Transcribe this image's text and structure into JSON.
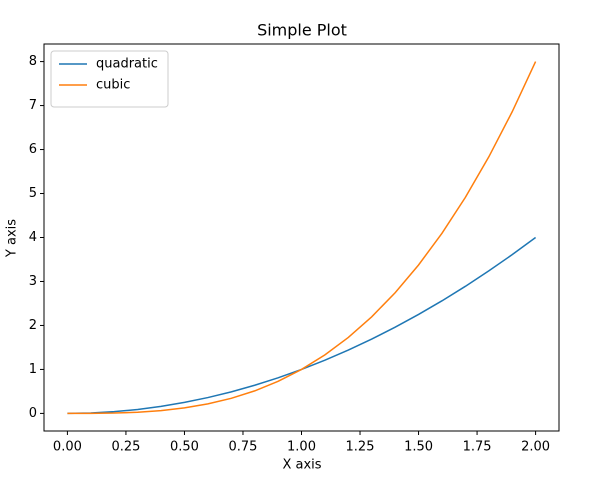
{
  "chart_data": {
    "type": "line",
    "title": "Simple Plot",
    "x_label": "X axis",
    "y_label": "Y axis",
    "x": [
      0,
      0.1,
      0.2,
      0.3,
      0.4,
      0.5,
      0.6,
      0.7,
      0.8,
      0.9,
      1,
      1.1,
      1.2,
      1.3,
      1.4,
      1.5,
      1.6,
      1.7,
      1.8,
      1.9,
      2
    ],
    "series": [
      {
        "name": "quadratic",
        "color": "#1f77b4",
        "values": [
          0,
          0.01,
          0.04,
          0.09,
          0.16,
          0.25,
          0.36,
          0.49,
          0.64,
          0.81,
          1,
          1.21,
          1.44,
          1.69,
          1.96,
          2.25,
          2.56,
          2.89,
          3.24,
          3.61,
          4
        ]
      },
      {
        "name": "cubic",
        "color": "#ff7f0e",
        "values": [
          0,
          0.001,
          0.008,
          0.027,
          0.064,
          0.125,
          0.216,
          0.343,
          0.512,
          0.729,
          1,
          1.331,
          1.728,
          2.197,
          2.744,
          3.375,
          4.096,
          4.913,
          5.832,
          6.859,
          8
        ]
      }
    ],
    "xlim": [
      -0.1,
      2.1
    ],
    "ylim": [
      -0.4,
      8.4
    ],
    "xticks": [
      {
        "value": 0,
        "label": "0.00"
      },
      {
        "value": 0.25,
        "label": "0.25"
      },
      {
        "value": 0.5,
        "label": "0.50"
      },
      {
        "value": 0.75,
        "label": "0.75"
      },
      {
        "value": 1,
        "label": "1.00"
      },
      {
        "value": 1.25,
        "label": "1.25"
      },
      {
        "value": 1.5,
        "label": "1.50"
      },
      {
        "value": 1.75,
        "label": "1.75"
      },
      {
        "value": 2,
        "label": "2.00"
      }
    ],
    "yticks": [
      0,
      1,
      2,
      3,
      4,
      5,
      6,
      7,
      8
    ],
    "grid": false,
    "legend": "upper left"
  }
}
